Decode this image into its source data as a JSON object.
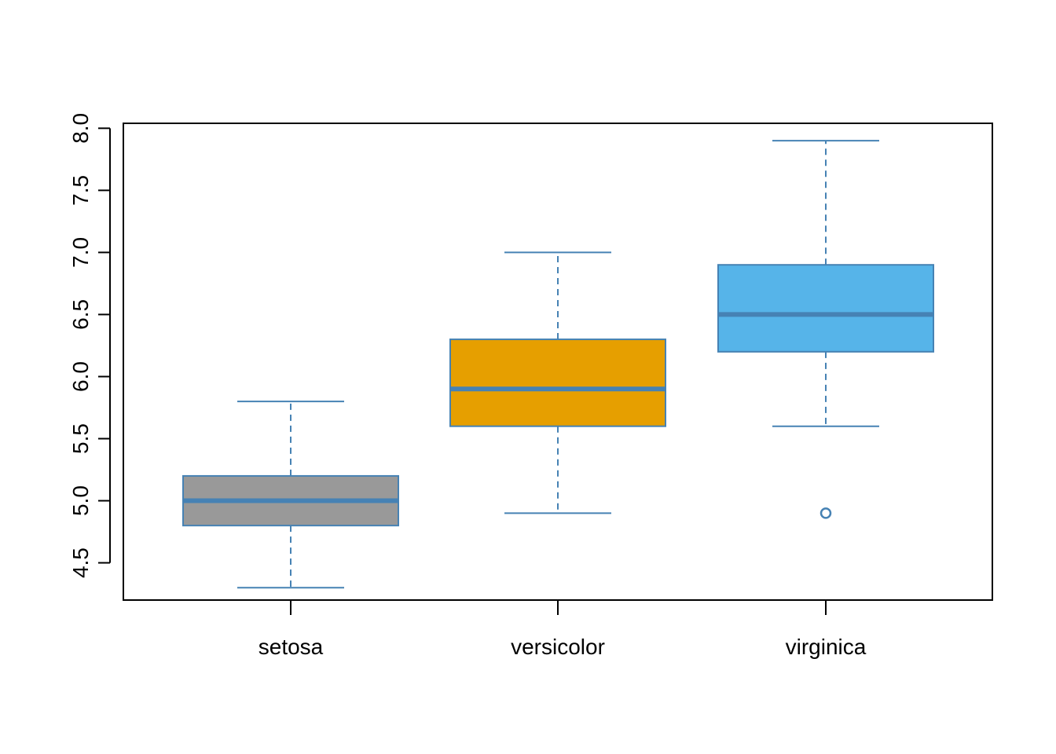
{
  "chart_data": {
    "type": "boxplot",
    "title": "",
    "xlabel": "",
    "ylabel": "",
    "ylim": [
      4.2,
      8.04
    ],
    "y_ticks": [
      "4.5",
      "5.0",
      "5.5",
      "6.0",
      "6.5",
      "7.0",
      "7.5",
      "8.0"
    ],
    "categories": [
      "setosa",
      "versicolor",
      "virginica"
    ],
    "boxes": [
      {
        "name": "setosa",
        "whisker_low": 4.3,
        "q1": 4.8,
        "median": 5.0,
        "q3": 5.2,
        "whisker_high": 5.8,
        "outliers": [],
        "fill": "#999999"
      },
      {
        "name": "versicolor",
        "whisker_low": 4.9,
        "q1": 5.6,
        "median": 5.9,
        "q3": 6.3,
        "whisker_high": 7.0,
        "outliers": [],
        "fill": "#E69F00"
      },
      {
        "name": "virginica",
        "whisker_low": 5.6,
        "q1": 6.2,
        "median": 6.5,
        "q3": 6.9,
        "whisker_high": 7.9,
        "outliers": [
          4.9
        ],
        "fill": "#56B4E9"
      }
    ],
    "border_color": "#4682B4",
    "grid": false
  }
}
